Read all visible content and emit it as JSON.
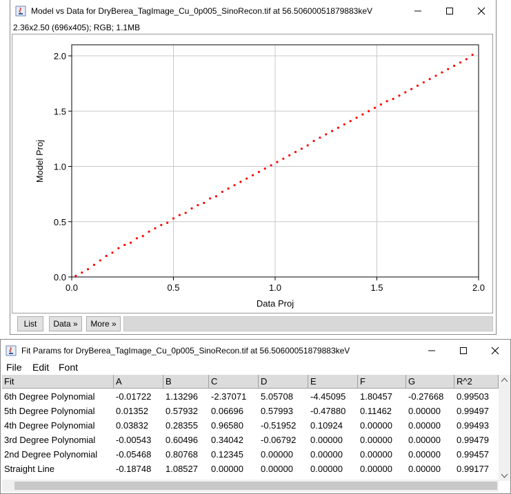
{
  "plot_window": {
    "title": "Model vs Data for DryBerea_TagImage_Cu_0p005_SinoRecon.tif at 56.50600051879883keV",
    "info": "2.36x2.50  (696x405); RGB; 1.1MB",
    "buttons": [
      "List",
      "Data »",
      "More »"
    ]
  },
  "chart_data": {
    "type": "scatter",
    "xlabel": "Data Proj",
    "ylabel": "Model Proj",
    "xlim": [
      0.0,
      2.0
    ],
    "ylim": [
      0.0,
      2.1
    ],
    "xticks": [
      "0.0",
      "0.5",
      "1.0",
      "1.5",
      "2.0"
    ],
    "yticks": [
      "0.0",
      "0.5",
      "1.0",
      "1.5",
      "2.0"
    ],
    "grid": true,
    "point_color": "#ff0000",
    "series": [
      {
        "x": [
          0.02,
          0.05,
          0.08,
          0.11,
          0.14,
          0.17,
          0.2,
          0.23,
          0.26,
          0.29,
          0.32,
          0.35,
          0.38,
          0.41,
          0.44,
          0.47,
          0.5,
          0.53,
          0.56,
          0.59,
          0.62,
          0.65,
          0.68,
          0.71,
          0.74,
          0.77,
          0.8,
          0.83,
          0.86,
          0.89,
          0.92,
          0.95,
          0.98,
          1.01,
          1.04,
          1.07,
          1.1,
          1.13,
          1.16,
          1.19,
          1.22,
          1.25,
          1.28,
          1.31,
          1.34,
          1.37,
          1.4,
          1.43,
          1.46,
          1.49,
          1.52,
          1.55,
          1.58,
          1.61,
          1.64,
          1.67,
          1.7,
          1.73,
          1.76,
          1.79,
          1.82,
          1.85,
          1.88,
          1.91,
          1.94,
          1.97
        ],
        "y": [
          0.01,
          0.04,
          0.07,
          0.11,
          0.15,
          0.19,
          0.22,
          0.26,
          0.29,
          0.31,
          0.35,
          0.37,
          0.41,
          0.44,
          0.47,
          0.49,
          0.53,
          0.56,
          0.58,
          0.62,
          0.65,
          0.67,
          0.71,
          0.73,
          0.77,
          0.8,
          0.83,
          0.86,
          0.89,
          0.92,
          0.95,
          0.98,
          1.01,
          1.04,
          1.07,
          1.1,
          1.13,
          1.16,
          1.19,
          1.23,
          1.26,
          1.29,
          1.32,
          1.35,
          1.38,
          1.41,
          1.44,
          1.47,
          1.5,
          1.53,
          1.56,
          1.59,
          1.61,
          1.64,
          1.67,
          1.7,
          1.73,
          1.76,
          1.79,
          1.82,
          1.85,
          1.88,
          1.91,
          1.94,
          1.97,
          2.01
        ]
      }
    ]
  },
  "fit_window": {
    "title": "Fit Params for DryBerea_TagImage_Cu_0p005_SinoRecon.tif at 56.50600051879883keV",
    "menus": [
      "File",
      "Edit",
      "Font"
    ],
    "columns": [
      "Fit",
      "A",
      "B",
      "C",
      "D",
      "E",
      "F",
      "G",
      "R^2"
    ],
    "rows": [
      [
        "6th Degree Polynomial",
        "-0.01722",
        "1.13296",
        "-2.37071",
        "5.05708",
        "-4.45095",
        "1.80457",
        "-0.27668",
        "0.99503"
      ],
      [
        "5th Degree Polynomial",
        "0.01352",
        "0.57932",
        "0.06696",
        "0.57993",
        "-0.47880",
        "0.11462",
        "0.00000",
        "0.99497"
      ],
      [
        "4th Degree Polynomial",
        "0.03832",
        "0.28355",
        "0.96580",
        "-0.51952",
        "0.10924",
        "0.00000",
        "0.00000",
        "0.99493"
      ],
      [
        "3rd Degree Polynomial",
        "-0.00543",
        "0.60496",
        "0.34042",
        "-0.06792",
        "0.00000",
        "0.00000",
        "0.00000",
        "0.99479"
      ],
      [
        "2nd Degree Polynomial",
        "-0.05468",
        "0.80768",
        "0.12345",
        "0.00000",
        "0.00000",
        "0.00000",
        "0.00000",
        "0.99457"
      ],
      [
        "Straight Line",
        "-0.18748",
        "1.08527",
        "0.00000",
        "0.00000",
        "0.00000",
        "0.00000",
        "0.00000",
        "0.99177"
      ]
    ]
  }
}
